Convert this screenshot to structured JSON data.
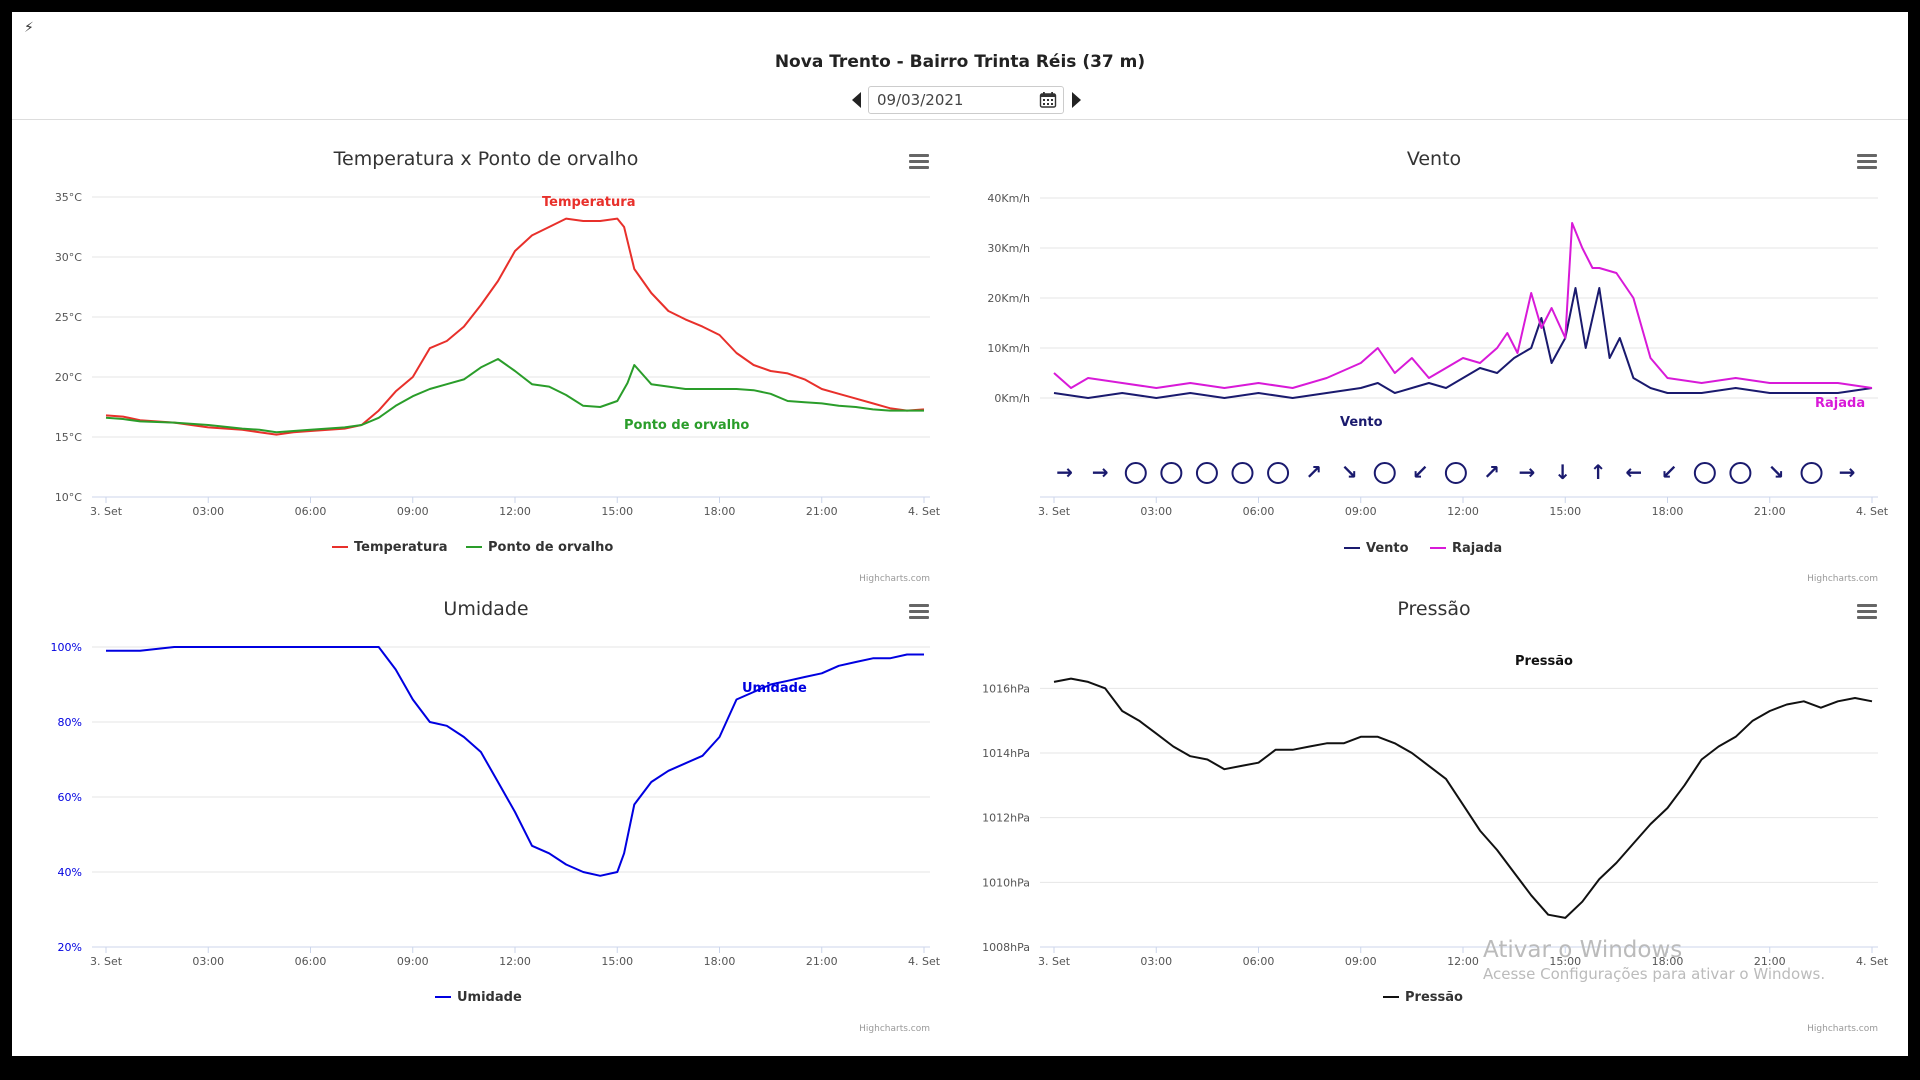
{
  "header": {
    "title": "Nova Trento - Bairro Trinta Réis (37 m)",
    "date_value": "09/03/2021"
  },
  "credits": "Highcharts.com",
  "watermark": {
    "title": "Ativar o Windows",
    "subtitle": "Acesse Configurações para ativar o Windows."
  },
  "colors": {
    "temperatura": "#e8302b",
    "ponto": "#2a9d2a",
    "vento": "#1a1a6e",
    "rajada": "#d81ad8",
    "umidade": "#0000e0",
    "pressao": "#111111"
  },
  "chart_data": [
    {
      "type": "line",
      "title": "Temperatura x Ponto de orvalho",
      "x_ticks": [
        "3. Set",
        "03:00",
        "06:00",
        "09:00",
        "12:00",
        "15:00",
        "18:00",
        "21:00",
        "4. Set"
      ],
      "xlim": [
        0,
        24
      ],
      "y_ticks": [
        "10°C",
        "15°C",
        "20°C",
        "25°C",
        "30°C",
        "35°C"
      ],
      "ylim": [
        10,
        35
      ],
      "legend": [
        "Temperatura",
        "Ponto de orvalho"
      ],
      "series": [
        {
          "name": "Temperatura",
          "color": "#e8302b",
          "x": [
            0,
            0.5,
            1,
            2,
            3,
            4,
            4.5,
            5,
            5.5,
            6,
            7,
            7.5,
            8,
            8.5,
            9,
            9.5,
            10,
            10.5,
            11,
            11.5,
            12,
            12.5,
            13,
            13.5,
            14,
            14.5,
            15,
            15.2,
            15.5,
            16,
            16.5,
            17,
            17.5,
            18,
            18.5,
            19,
            19.5,
            20,
            20.5,
            21,
            21.5,
            22,
            22.5,
            23,
            23.5,
            24
          ],
          "y": [
            16.8,
            16.7,
            16.4,
            16.2,
            15.8,
            15.6,
            15.4,
            15.2,
            15.4,
            15.5,
            15.7,
            16.0,
            17.2,
            18.8,
            20.0,
            22.4,
            23.0,
            24.2,
            26.0,
            28.0,
            30.5,
            31.8,
            32.5,
            33.2,
            33.0,
            33.0,
            33.2,
            32.5,
            29.0,
            27.0,
            25.5,
            24.8,
            24.2,
            23.5,
            22.0,
            21.0,
            20.5,
            20.3,
            19.8,
            19.0,
            18.6,
            18.2,
            17.8,
            17.4,
            17.2,
            17.3
          ]
        },
        {
          "name": "Ponto de orvalho",
          "color": "#2a9d2a",
          "x": [
            0,
            0.5,
            1,
            2,
            3,
            4,
            4.5,
            5,
            5.5,
            6,
            7,
            7.5,
            8,
            8.5,
            9,
            9.5,
            10,
            10.5,
            11,
            11.5,
            12,
            12.5,
            13,
            13.5,
            14,
            14.5,
            15,
            15.3,
            15.5,
            16,
            16.5,
            17,
            17.5,
            18,
            18.5,
            19,
            19.5,
            20,
            20.5,
            21,
            21.5,
            22,
            22.5,
            23,
            23.5,
            24
          ],
          "y": [
            16.6,
            16.5,
            16.3,
            16.2,
            16.0,
            15.7,
            15.6,
            15.4,
            15.5,
            15.6,
            15.8,
            16.0,
            16.6,
            17.6,
            18.4,
            19.0,
            19.4,
            19.8,
            20.8,
            21.5,
            20.5,
            19.4,
            19.2,
            18.5,
            17.6,
            17.5,
            18.0,
            19.5,
            21.0,
            19.4,
            19.2,
            19.0,
            19.0,
            19.0,
            19.0,
            18.9,
            18.6,
            18.0,
            17.9,
            17.8,
            17.6,
            17.5,
            17.3,
            17.2,
            17.2,
            17.2
          ]
        }
      ]
    },
    {
      "type": "line",
      "title": "Vento",
      "x_ticks": [
        "3. Set",
        "03:00",
        "06:00",
        "09:00",
        "12:00",
        "15:00",
        "18:00",
        "21:00",
        "4. Set"
      ],
      "xlim": [
        0,
        24
      ],
      "y_ticks": [
        "0Km/h",
        "10Km/h",
        "20Km/h",
        "30Km/h",
        "40Km/h"
      ],
      "ylim": [
        0,
        40
      ],
      "legend": [
        "Vento",
        "Rajada"
      ],
      "series": [
        {
          "name": "Vento",
          "color": "#1a1a6e",
          "x": [
            0,
            1,
            2,
            3,
            4,
            5,
            6,
            7,
            8,
            9,
            9.5,
            10,
            10.5,
            11,
            11.5,
            12,
            12.5,
            13,
            13.5,
            14,
            14.3,
            14.6,
            15,
            15.3,
            15.6,
            16,
            16.3,
            16.6,
            17,
            17.5,
            18,
            19,
            20,
            21,
            22,
            23,
            24
          ],
          "y": [
            1,
            0,
            1,
            0,
            1,
            0,
            1,
            0,
            1,
            2,
            3,
            1,
            2,
            3,
            2,
            4,
            6,
            5,
            8,
            10,
            16,
            7,
            12,
            22,
            10,
            22,
            8,
            12,
            4,
            2,
            1,
            1,
            2,
            1,
            1,
            1,
            2
          ]
        },
        {
          "name": "Rajada",
          "color": "#d81ad8",
          "x": [
            0,
            0.5,
            1,
            2,
            3,
            4,
            5,
            6,
            7,
            8,
            9,
            9.5,
            10,
            10.5,
            11,
            11.5,
            12,
            12.5,
            13,
            13.3,
            13.6,
            14,
            14.3,
            14.6,
            15,
            15.2,
            15.5,
            15.8,
            16,
            16.5,
            17,
            17.5,
            18,
            19,
            20,
            21,
            22,
            23,
            24
          ],
          "y": [
            5,
            2,
            4,
            3,
            2,
            3,
            2,
            3,
            2,
            4,
            7,
            10,
            5,
            8,
            4,
            6,
            8,
            7,
            10,
            13,
            9,
            21,
            14,
            18,
            12,
            35,
            30,
            26,
            26,
            25,
            20,
            8,
            4,
            3,
            4,
            3,
            3,
            3,
            2
          ]
        }
      ],
      "direction_labels": [
        "→",
        "→",
        "○",
        "○",
        "○",
        "○",
        "○",
        "↗",
        "↘",
        "○",
        "↙",
        "○",
        "↗",
        "→",
        "↓",
        "↑",
        "←",
        "↙",
        "○",
        "○",
        "↘",
        "○",
        "→"
      ],
      "series_labels": [
        "Vento",
        "Rajada"
      ]
    },
    {
      "type": "line",
      "title": "Umidade",
      "x_ticks": [
        "3. Set",
        "03:00",
        "06:00",
        "09:00",
        "12:00",
        "15:00",
        "18:00",
        "21:00",
        "4. Set"
      ],
      "xlim": [
        0,
        24
      ],
      "y_ticks": [
        "20%",
        "40%",
        "60%",
        "80%",
        "100%"
      ],
      "ylim": [
        20,
        100
      ],
      "legend": [
        "Umidade"
      ],
      "series": [
        {
          "name": "Umidade",
          "color": "#0000e0",
          "x": [
            0,
            1,
            2,
            3,
            4,
            5,
            6,
            7,
            8,
            8.5,
            9,
            9.5,
            10,
            10.5,
            11,
            11.5,
            12,
            12.5,
            13,
            13.5,
            14,
            14.5,
            15,
            15.2,
            15.5,
            16,
            16.5,
            17,
            17.5,
            18,
            18.5,
            19,
            19.5,
            20,
            20.5,
            21,
            21.5,
            22,
            22.5,
            23,
            23.5,
            24
          ],
          "y": [
            99,
            99,
            100,
            100,
            100,
            100,
            100,
            100,
            100,
            94,
            86,
            80,
            79,
            76,
            72,
            64,
            56,
            47,
            45,
            42,
            40,
            39,
            40,
            45,
            58,
            64,
            67,
            69,
            71,
            76,
            86,
            88,
            90,
            91,
            92,
            93,
            95,
            96,
            97,
            97,
            98,
            98
          ]
        }
      ]
    },
    {
      "type": "line",
      "title": "Pressão",
      "x_ticks": [
        "3. Set",
        "03:00",
        "06:00",
        "09:00",
        "12:00",
        "15:00",
        "18:00",
        "21:00",
        "4. Set"
      ],
      "xlim": [
        0,
        24
      ],
      "y_ticks": [
        "1008hPa",
        "1010hPa",
        "1012hPa",
        "1014hPa",
        "1016hPa"
      ],
      "ylim": [
        1008,
        1017
      ],
      "legend": [
        "Pressão"
      ],
      "series": [
        {
          "name": "Pressão",
          "color": "#111111",
          "x": [
            0,
            0.5,
            1,
            1.5,
            2,
            2.5,
            3,
            3.5,
            4,
            4.5,
            5,
            5.5,
            6,
            6.5,
            7,
            7.5,
            8,
            8.5,
            9,
            9.5,
            10,
            10.5,
            11,
            11.5,
            12,
            12.5,
            13,
            13.5,
            14,
            14.5,
            15,
            15.5,
            16,
            16.5,
            17,
            17.5,
            18,
            18.5,
            19,
            19.5,
            20,
            20.5,
            21,
            21.5,
            22,
            22.5,
            23,
            23.5,
            24
          ],
          "y": [
            1016.2,
            1016.3,
            1016.2,
            1016.0,
            1015.3,
            1015.0,
            1014.6,
            1014.2,
            1013.9,
            1013.8,
            1013.5,
            1013.6,
            1013.7,
            1014.1,
            1014.1,
            1014.2,
            1014.3,
            1014.3,
            1014.5,
            1014.5,
            1014.3,
            1014.0,
            1013.6,
            1013.2,
            1012.4,
            1011.6,
            1011.0,
            1010.3,
            1009.6,
            1009.0,
            1008.9,
            1009.4,
            1010.1,
            1010.6,
            1011.2,
            1011.8,
            1012.3,
            1013.0,
            1013.8,
            1014.2,
            1014.5,
            1015.0,
            1015.3,
            1015.5,
            1015.6,
            1015.4,
            1015.6,
            1015.7,
            1015.6
          ]
        }
      ]
    }
  ]
}
